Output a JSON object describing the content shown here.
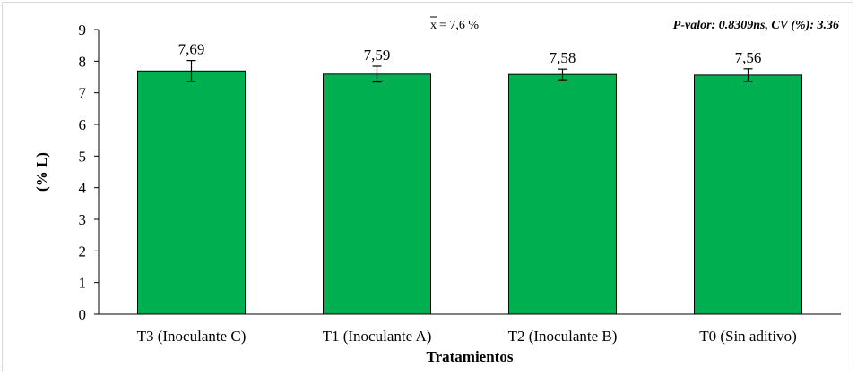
{
  "chart_data": {
    "type": "bar",
    "categories": [
      "T3 (Inoculante C)",
      "T1 (Inoculante A)",
      "T2 (Inoculante B)",
      "T0 (Sin aditivo)"
    ],
    "values": [
      7.69,
      7.59,
      7.58,
      7.56
    ],
    "data_labels": [
      "7,69",
      "7,59",
      "7,58",
      "7,56"
    ],
    "error": [
      0.33,
      0.25,
      0.17,
      0.2
    ],
    "xlabel": "Tratamientos",
    "ylabel": "(% L)",
    "ylim": [
      0,
      9
    ],
    "yticks": [
      "0",
      "1",
      "2",
      "3",
      "4",
      "5",
      "6",
      "7",
      "8",
      "9"
    ],
    "grid": false,
    "bar_color": "#00b050",
    "annotations": {
      "mean_symbol": "x",
      "mean_value": "= 7,6 %",
      "stats": "P-valor: 0.8309ns, CV (%): 3.36"
    }
  }
}
